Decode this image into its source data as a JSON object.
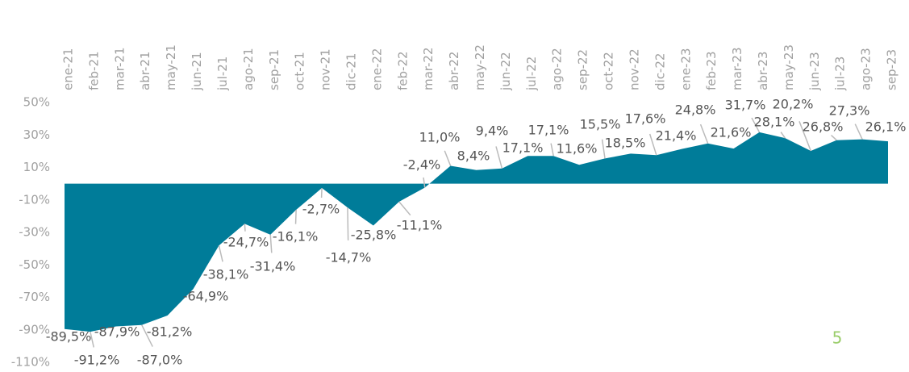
{
  "chart_data": {
    "type": "area",
    "color": "#007c99",
    "categories": [
      "ene-21",
      "feb-21",
      "mar-21",
      "abr-21",
      "may-21",
      "jun-21",
      "jul-21",
      "ago-21",
      "sep-21",
      "oct-21",
      "nov-21",
      "dic-21",
      "ene-22",
      "feb-22",
      "mar-22",
      "abr-22",
      "may-22",
      "jun-22",
      "jul-22",
      "ago-22",
      "sep-22",
      "oct-22",
      "nov-22",
      "dic-22",
      "ene-23",
      "feb-23",
      "mar-23",
      "abr-23",
      "may-23",
      "jun-23",
      "jul-23",
      "ago-23",
      "sep-23"
    ],
    "values": [
      -89.5,
      -91.2,
      -87.9,
      -87.0,
      -81.2,
      -64.9,
      -38.1,
      -24.7,
      -31.4,
      -16.1,
      -2.7,
      -14.7,
      -25.8,
      -11.1,
      -2.4,
      11.0,
      8.4,
      9.4,
      17.1,
      17.1,
      11.6,
      15.5,
      18.5,
      17.6,
      21.4,
      24.8,
      21.6,
      31.7,
      28.1,
      20.2,
      26.8,
      27.3,
      26.1
    ],
    "value_labels": [
      "-89,5%",
      "-91,2%",
      "-87,9%",
      "-87,0%",
      "-81,2%",
      "-64,9%",
      "-38,1%",
      "-24,7%",
      "-31,4%",
      "-16,1%",
      "-2,7%",
      "-14,7%",
      "-25,8%",
      "-11,1%",
      "-2,4%",
      "11,0%",
      "8,4%",
      "9,4%",
      "17,1%",
      "17,1%",
      "11,6%",
      "15,5%",
      "18,5%",
      "17,6%",
      "21,4%",
      "24,8%",
      "21,6%",
      "31,7%",
      "28,1%",
      "20,2%",
      "26,8%",
      "27,3%",
      "26,1%"
    ],
    "ylim": [
      -110,
      50
    ],
    "yticks": [
      {
        "value": 50,
        "label": "50%"
      },
      {
        "value": 30,
        "label": "30%"
      },
      {
        "value": 10,
        "label": "10%"
      },
      {
        "value": -10,
        "label": "-10%"
      },
      {
        "value": -30,
        "label": "-30%"
      },
      {
        "value": -50,
        "label": "-50%"
      },
      {
        "value": -70,
        "label": "-70%"
      },
      {
        "value": -90,
        "label": "-90%"
      },
      {
        "value": -110,
        "label": "-110%"
      }
    ],
    "page_number": "5"
  }
}
